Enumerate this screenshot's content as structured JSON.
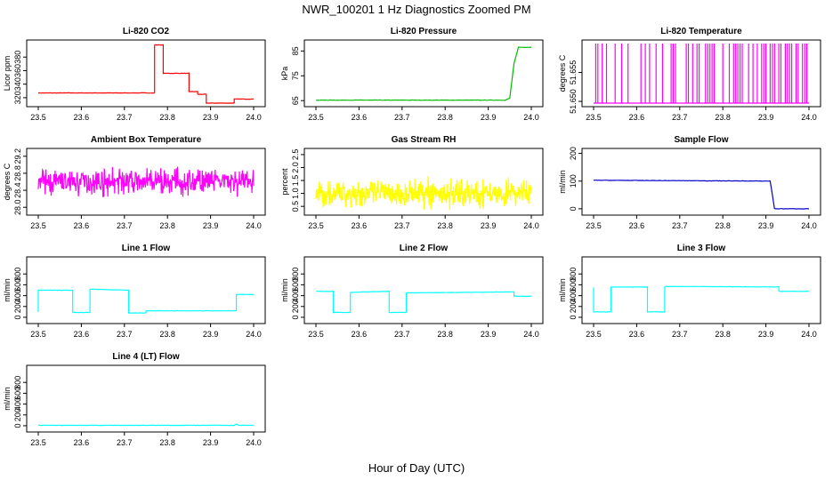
{
  "figure": {
    "title": "NWR_100201  1 Hz Diagnostics Zoomed PM",
    "xlabel": "Hour of Day (UTC)"
  },
  "chart_data": [
    {
      "type": "line",
      "title": "Li-820 CO2",
      "ylabel": "Licor ppm",
      "color": "#ff0000",
      "xlim": [
        23.5,
        24.0
      ],
      "ylim": [
        312,
        400
      ],
      "xticks": [
        "23.5",
        "23.6",
        "23.7",
        "23.8",
        "23.9",
        "24.0"
      ],
      "yticks": [
        320,
        340,
        360,
        380
      ],
      "series": [
        {
          "x": [
            23.5,
            23.77,
            23.77,
            23.79,
            23.79,
            23.85,
            23.85,
            23.87,
            23.87,
            23.89,
            23.89,
            23.955,
            23.955,
            24.0
          ],
          "y": [
            327,
            327,
            398,
            398,
            356,
            356,
            329,
            329,
            325,
            325,
            312,
            312,
            318,
            318
          ]
        }
      ]
    },
    {
      "type": "line",
      "title": "Li-820 Pressure",
      "ylabel": "kPa",
      "color": "#00bb00",
      "xlim": [
        23.5,
        24.0
      ],
      "ylim": [
        64,
        88
      ],
      "xticks": [
        "23.5",
        "23.6",
        "23.7",
        "23.8",
        "23.9",
        "24.0"
      ],
      "yticks": [
        65,
        75,
        85
      ],
      "series": [
        {
          "x": [
            23.5,
            23.94,
            23.95,
            23.96,
            23.97,
            23.98,
            24.0
          ],
          "y": [
            65.2,
            65.2,
            66,
            80,
            86.5,
            86.5,
            86.5
          ]
        }
      ]
    },
    {
      "type": "line",
      "title": "Li-820 Temperature",
      "ylabel": "degrees C",
      "color": "#ff00ff",
      "xlim": [
        23.5,
        24.0
      ],
      "ylim": [
        51.6497,
        51.66
      ],
      "xticks": [
        "23.5",
        "23.6",
        "23.7",
        "23.8",
        "23.9",
        "24.0"
      ],
      "yticks": [
        "51.650",
        "51.655"
      ],
      "yticklabels": [
        "51.650",
        "51.655"
      ],
      "series": [
        {
          "spikes_x": [
            23.505,
            23.51,
            23.52,
            23.53,
            23.55,
            23.565,
            23.58,
            23.61,
            23.62,
            23.63,
            23.645,
            23.66,
            23.66,
            23.68,
            23.685,
            23.69,
            23.715,
            23.72,
            23.73,
            23.74,
            23.745,
            23.76,
            23.765,
            23.77,
            23.775,
            23.78,
            23.8,
            23.815,
            23.825,
            23.83,
            23.835,
            23.84,
            23.845,
            23.86,
            23.87,
            23.88,
            23.89,
            23.895,
            23.9,
            23.91,
            23.915,
            23.92,
            23.93,
            23.935,
            23.945,
            23.95,
            23.955,
            23.96,
            23.97,
            23.975,
            23.985,
            23.99,
            23.995
          ],
          "low": 51.6497,
          "high": 51.66
        }
      ]
    },
    {
      "type": "line",
      "title": "Ambient Box Temperature",
      "ylabel": "degrees C",
      "color": "#ff00ff",
      "xlim": [
        23.5,
        24.0
      ],
      "ylim": [
        27.9,
        29.3
      ],
      "xticks": [
        "23.5",
        "23.6",
        "23.7",
        "23.8",
        "23.9",
        "24.0"
      ],
      "yticks": [
        28.0,
        28.4,
        28.8,
        29.2
      ],
      "yticklabels": [
        "28.0",
        "28.4",
        "28.8",
        "29.2"
      ],
      "series": [
        {
          "mean": 28.6,
          "noise": 0.2,
          "n": 500
        }
      ]
    },
    {
      "type": "line",
      "title": "Gas Stream RH",
      "ylabel": "percent",
      "color": "#ffff00",
      "xlim": [
        23.5,
        24.0
      ],
      "ylim": [
        0.3,
        2.6
      ],
      "xticks": [
        "23.5",
        "23.6",
        "23.7",
        "23.8",
        "23.9",
        "24.0"
      ],
      "yticks": [
        0.5,
        1.0,
        1.5,
        2.0,
        2.5
      ],
      "yticklabels": [
        "0.5",
        "1.0",
        "1.5",
        "2.0",
        "2.5"
      ],
      "series": [
        {
          "mean": 1.0,
          "noise": 0.35,
          "n": 500
        }
      ]
    },
    {
      "type": "line",
      "title": "Sample Flow",
      "ylabel": "ml/min",
      "color": "#0000cc",
      "xlim": [
        23.5,
        24.0
      ],
      "ylim": [
        -10,
        205
      ],
      "xticks": [
        "23.5",
        "23.6",
        "23.7",
        "23.8",
        "23.9",
        "24.0"
      ],
      "yticks": [
        0,
        100,
        200
      ],
      "series": [
        {
          "x": [
            23.5,
            23.91,
            23.92,
            24.0
          ],
          "y": [
            103,
            100,
            0,
            0
          ]
        }
      ]
    },
    {
      "type": "line",
      "title": "Line 1 Flow",
      "ylabel": "ml/min",
      "color": "#00ffff",
      "xlim": [
        23.5,
        24.0
      ],
      "ylim": [
        -50,
        1050
      ],
      "xticks": [
        "23.5",
        "23.6",
        "23.7",
        "23.8",
        "23.9",
        "24.0"
      ],
      "yticks": [
        0,
        200,
        400,
        600,
        800
      ],
      "series": [
        {
          "x": [
            23.5,
            23.5,
            23.58,
            23.58,
            23.62,
            23.62,
            23.71,
            23.71,
            23.75,
            23.75,
            23.96,
            23.96,
            24.0
          ],
          "y": [
            100,
            500,
            500,
            90,
            90,
            520,
            500,
            80,
            80,
            120,
            120,
            420,
            420
          ]
        }
      ]
    },
    {
      "type": "line",
      "title": "Line 2 Flow",
      "ylabel": "ml/min",
      "color": "#00ffff",
      "xlim": [
        23.5,
        24.0
      ],
      "ylim": [
        -50,
        1050
      ],
      "xticks": [
        "23.5",
        "23.6",
        "23.7",
        "23.8",
        "23.9",
        "24.0"
      ],
      "yticks": [
        0,
        200,
        400,
        600,
        800
      ],
      "series": [
        {
          "x": [
            23.5,
            23.54,
            23.54,
            23.58,
            23.58,
            23.67,
            23.67,
            23.71,
            23.71,
            23.96,
            23.96,
            24.0
          ],
          "y": [
            480,
            480,
            90,
            90,
            460,
            480,
            90,
            90,
            450,
            470,
            390,
            390
          ]
        }
      ]
    },
    {
      "type": "line",
      "title": "Line 3 Flow",
      "ylabel": "ml/min",
      "color": "#00ffff",
      "xlim": [
        23.5,
        24.0
      ],
      "ylim": [
        -50,
        1050
      ],
      "xticks": [
        "23.5",
        "23.6",
        "23.7",
        "23.8",
        "23.9",
        "24.0"
      ],
      "yticks": [
        0,
        200,
        400,
        600,
        800
      ],
      "series": [
        {
          "x": [
            23.5,
            23.5,
            23.54,
            23.54,
            23.625,
            23.625,
            23.665,
            23.665,
            23.93,
            23.93,
            24.0
          ],
          "y": [
            550,
            100,
            100,
            560,
            560,
            100,
            100,
            570,
            560,
            480,
            480
          ]
        }
      ]
    },
    {
      "type": "line",
      "title": "Line 4 (LT) Flow",
      "ylabel": "ml/min",
      "color": "#00ffff",
      "xlim": [
        23.5,
        24.0
      ],
      "ylim": [
        -50,
        1050
      ],
      "xticks": [
        "23.5",
        "23.6",
        "23.7",
        "23.8",
        "23.9",
        "24.0"
      ],
      "yticks": [
        0,
        200,
        400,
        600,
        800
      ],
      "series": [
        {
          "x": [
            23.5,
            23.955,
            23.96,
            23.965,
            24.0
          ],
          "y": [
            8,
            8,
            30,
            8,
            8
          ]
        }
      ]
    }
  ]
}
